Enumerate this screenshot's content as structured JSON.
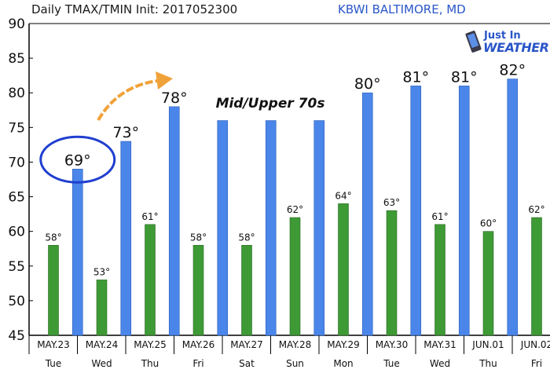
{
  "header": {
    "title": "Daily TMAX/TMIN Init: 2017052300",
    "station": "KBWI BALTIMORE, MD"
  },
  "logo": {
    "line1": "Just In",
    "line2": "WEATHER"
  },
  "annotation": {
    "text": "Mid/Upper 70s"
  },
  "chart_data": {
    "type": "bar",
    "title": "Daily TMAX/TMIN Init: 2017052300",
    "ylim": [
      45,
      90
    ],
    "yticks": [
      45,
      50,
      55,
      60,
      65,
      70,
      75,
      80,
      85,
      90
    ],
    "grid": false,
    "xticks": [
      {
        "date": "MAY.23",
        "day": "Tue"
      },
      {
        "date": "MAY.24",
        "day": "Wed"
      },
      {
        "date": "MAY.25",
        "day": "Thu"
      },
      {
        "date": "MAY.26",
        "day": "Fri"
      },
      {
        "date": "MAY.27",
        "day": "Sat"
      },
      {
        "date": "MAY.28",
        "day": "Sun"
      },
      {
        "date": "MAY.29",
        "day": "Mon"
      },
      {
        "date": "MAY.30",
        "day": "Tue"
      },
      {
        "date": "MAY.31",
        "day": "Wed"
      },
      {
        "date": "JUN.01",
        "day": "Thu"
      },
      {
        "date": "JUN.02",
        "day": "Fri"
      }
    ],
    "series": [
      {
        "role": "tmin",
        "color": "#3e9a35",
        "values": [
          58,
          53,
          61,
          58,
          58,
          62,
          64,
          63,
          61,
          60,
          62
        ],
        "labels": [
          "58°",
          "53°",
          "61°",
          "58°",
          "58°",
          "62°",
          "64°",
          "63°",
          "61°",
          "60°",
          "62°"
        ]
      },
      {
        "role": "tmax",
        "color": "#4a86ea",
        "values": [
          69,
          73,
          78,
          76,
          76,
          76,
          80,
          81,
          81,
          82
        ],
        "labels": [
          "69°",
          "73°",
          "78°",
          "",
          "",
          "",
          "80°",
          "81°",
          "81°",
          "82°"
        ]
      }
    ],
    "highlight_color": "#1f3fcf",
    "arrow_color": "#f0a23a"
  }
}
